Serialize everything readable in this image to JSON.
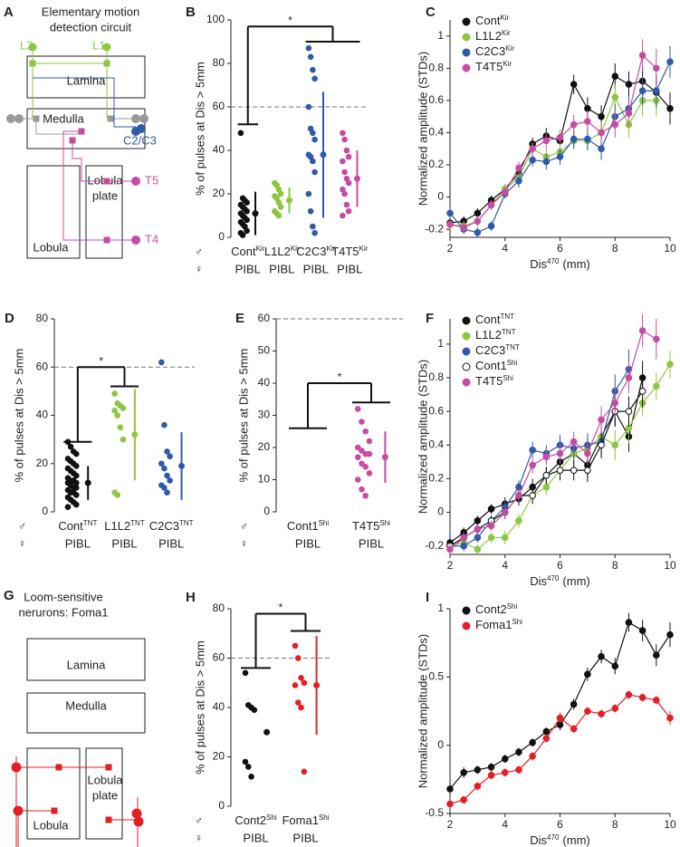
{
  "diagrams": [
    {
      "panel": "A",
      "title_lines": [
        "Elementary motion",
        "detection circuit"
      ],
      "neurons": [
        "L2",
        "L1",
        "C2/C3",
        "T5",
        "T4"
      ],
      "regions": [
        "Lamina",
        "Medulla",
        "Lobula"
      ],
      "plate_lines": [
        "Lobula",
        "plate"
      ]
    },
    {
      "panel": "G",
      "title_lines": [
        "Loom-sensitive",
        "nerurons: Foma1"
      ],
      "regions": [
        "Lamina",
        "Medulla",
        "Lobula"
      ],
      "plate_lines": [
        "Lobula",
        "plate"
      ]
    }
  ],
  "chart_data": [
    {
      "panel": "B",
      "type": "strip",
      "y_label": "% of pulses at Dis > 5mm",
      "male_symbol": "♂",
      "female_symbol": "♀",
      "categories": [
        "Cont",
        "L1L2",
        "C2C3",
        "T4T5"
      ],
      "category_sups": [
        "Kir",
        "Kir",
        "Kir",
        "Kir"
      ],
      "female_labels": [
        "PIBL",
        "PIBL",
        "PIBL",
        "PIBL"
      ],
      "colors": [
        "#111111",
        "#8dc63f",
        "#2f5aa8",
        "#c54ca0"
      ],
      "values": [
        [
          48,
          18,
          17,
          16,
          15,
          14,
          13,
          12,
          11,
          10,
          9,
          8,
          7,
          6,
          5,
          3,
          2,
          1
        ],
        [
          25,
          24,
          22,
          20,
          19,
          18,
          16,
          14,
          12,
          11,
          10
        ],
        [
          87,
          83,
          77,
          73,
          60,
          50,
          48,
          45,
          38,
          37,
          35,
          30,
          20,
          12,
          5,
          2
        ],
        [
          48,
          45,
          40,
          37,
          35,
          30,
          27,
          25,
          22,
          20,
          15,
          12,
          10
        ]
      ],
      "means": [
        11,
        17,
        38,
        27
      ],
      "errors": [
        10,
        6,
        29,
        13
      ],
      "ylim": [
        0,
        100
      ],
      "yticks": [
        0,
        20,
        40,
        60,
        80,
        100
      ],
      "reference_line": 60,
      "significance": {
        "label": "*",
        "legs": [
          {
            "from": 0,
            "to": 0,
            "y": 52
          },
          {
            "from": 2,
            "to": 3,
            "y": 90
          }
        ],
        "top": 97
      }
    },
    {
      "panel": "C",
      "type": "line",
      "y_label": "Normalized amplitude (STDs)",
      "x_label": "Dis",
      "x_label_sup": "470",
      "x_label_unit": "(mm)",
      "x": [
        2,
        2.5,
        3,
        3.5,
        4,
        4.5,
        5,
        5.5,
        6,
        6.5,
        7,
        7.5,
        8,
        8.5,
        9,
        9.5,
        10
      ],
      "xlim": [
        2,
        10
      ],
      "xticks": [
        2,
        4,
        6,
        8,
        10
      ],
      "ylim": [
        -0.25,
        1.1
      ],
      "yticks": [
        -0.2,
        0,
        0.2,
        0.4,
        0.6,
        0.8,
        1
      ],
      "legend": "top-left",
      "series": [
        {
          "name": "Cont",
          "name_sup": "Kir",
          "color": "#111111",
          "values": [
            -0.16,
            -0.15,
            -0.1,
            -0.02,
            0.05,
            0.15,
            0.33,
            0.38,
            0.35,
            0.7,
            0.55,
            0.5,
            0.75,
            0.7,
            0.72,
            0.65,
            0.55
          ],
          "errors": [
            0.03,
            0.03,
            0.03,
            0.03,
            0.03,
            0.04,
            0.04,
            0.05,
            0.05,
            0.06,
            0.07,
            0.07,
            0.08,
            0.08,
            0.09,
            0.1,
            0.1
          ]
        },
        {
          "name": "L1L2",
          "name_sup": "Kir",
          "color": "#8dc63f",
          "values": [
            -0.17,
            -0.18,
            -0.15,
            -0.05,
            0.05,
            0.12,
            0.3,
            0.25,
            0.28,
            0.35,
            0.35,
            0.4,
            0.62,
            0.45,
            0.6,
            0.6,
            null
          ],
          "errors": [
            0.03,
            0.03,
            0.03,
            0.03,
            0.03,
            0.04,
            0.04,
            0.05,
            0.05,
            0.05,
            0.06,
            0.07,
            0.08,
            0.08,
            0.1,
            0.1,
            null
          ]
        },
        {
          "name": "C2C3",
          "name_sup": "Kir",
          "color": "#2f5aa8",
          "values": [
            -0.1,
            -0.2,
            -0.22,
            -0.18,
            0.02,
            0.1,
            0.23,
            0.22,
            0.25,
            0.36,
            0.36,
            0.3,
            0.5,
            0.55,
            0.66,
            0.66,
            0.84
          ],
          "errors": [
            0.03,
            0.03,
            0.03,
            0.03,
            0.03,
            0.04,
            0.04,
            0.05,
            0.05,
            0.06,
            0.07,
            0.07,
            0.08,
            0.08,
            0.09,
            0.1,
            0.1
          ]
        },
        {
          "name": "T4T5",
          "name_sup": "Kir",
          "color": "#c54ca0",
          "values": [
            -0.17,
            -0.19,
            -0.15,
            -0.05,
            0.03,
            0.18,
            0.3,
            0.35,
            0.37,
            0.45,
            0.47,
            0.4,
            0.45,
            0.52,
            0.88,
            0.8,
            null
          ],
          "errors": [
            0.03,
            0.03,
            0.03,
            0.03,
            0.03,
            0.04,
            0.04,
            0.05,
            0.05,
            0.06,
            0.07,
            0.07,
            0.08,
            0.08,
            0.1,
            0.12,
            null
          ]
        }
      ]
    },
    {
      "panel": "D",
      "type": "strip",
      "y_label": "% of pulses at Dis > 5mm",
      "male_symbol": "♂",
      "female_symbol": "♀",
      "categories": [
        "Cont",
        "L1L2",
        "C2C3"
      ],
      "category_sups": [
        "TNT",
        "TNT",
        "TNT"
      ],
      "female_labels": [
        "PIBL",
        "PIBL",
        "PIBL"
      ],
      "colors": [
        "#111111",
        "#8dc63f",
        "#2f5aa8"
      ],
      "values": [
        [
          29,
          27,
          25,
          24,
          22,
          21,
          20,
          19,
          18,
          17,
          16,
          15,
          14,
          13,
          13,
          12,
          12,
          11,
          10,
          10,
          9,
          8,
          8,
          7,
          6,
          5,
          4,
          3,
          2
        ],
        [
          49,
          45,
          44,
          43,
          42,
          40,
          35,
          30,
          8,
          7
        ],
        [
          62,
          36,
          25,
          23,
          20,
          18,
          15,
          13,
          11,
          10,
          8
        ]
      ],
      "means": [
        12,
        32,
        19
      ],
      "errors": [
        7,
        19,
        14
      ],
      "ylim": [
        0,
        80
      ],
      "yticks": [
        0,
        20,
        40,
        60,
        80
      ],
      "reference_line": 60,
      "significance": {
        "label": "*",
        "legs": [
          {
            "from": 0,
            "to": 0,
            "y": 29
          },
          {
            "from": 1,
            "to": 1,
            "y": 52
          }
        ],
        "top": 60
      }
    },
    {
      "panel": "E",
      "type": "strip",
      "y_label": "% of pulses at Dis > 5mm",
      "male_symbol": "♂",
      "female_symbol": "♀",
      "categories": [
        "Cont1",
        "T4T5"
      ],
      "category_sups": [
        "Shi",
        "Shi"
      ],
      "female_labels": [
        "PIBL",
        "PIBL"
      ],
      "colors": [
        "#111111",
        "#c54ca0"
      ],
      "values": [
        [],
        [
          32,
          28,
          25,
          22,
          20,
          19,
          18,
          18,
          17,
          15,
          14,
          12,
          10,
          7,
          5
        ]
      ],
      "means": [
        null,
        17
      ],
      "errors": [
        null,
        8
      ],
      "ylim": [
        0,
        60
      ],
      "yticks": [
        0,
        10,
        20,
        30,
        40,
        50,
        60
      ],
      "reference_line": 60,
      "significance": {
        "label": "*",
        "legs": [
          {
            "from": 0,
            "to": 0,
            "y": 26
          },
          {
            "from": 1,
            "to": 1,
            "y": 34
          }
        ],
        "top": 40
      }
    },
    {
      "panel": "F",
      "type": "line",
      "y_label": "Normalized amplitude (STDs)",
      "x_label": "Dis",
      "x_label_sup": "470",
      "x_label_unit": "(mm)",
      "x": [
        2,
        2.5,
        3,
        3.5,
        4,
        4.5,
        5,
        5.5,
        6,
        6.5,
        7,
        7.5,
        8,
        8.5,
        9,
        9.5,
        10
      ],
      "xlim": [
        2,
        10
      ],
      "xticks": [
        2,
        4,
        6,
        8,
        10
      ],
      "ylim": [
        -0.25,
        1.15
      ],
      "yticks": [
        -0.2,
        0,
        0.2,
        0.4,
        0.6,
        0.8,
        1
      ],
      "legend": "top-left",
      "series": [
        {
          "name": "Cont",
          "name_sup": "TNT",
          "color": "#111111",
          "values": [
            -0.18,
            -0.12,
            -0.05,
            0.02,
            0.05,
            0.08,
            0.15,
            0.22,
            0.3,
            0.35,
            0.28,
            0.45,
            0.6,
            0.45,
            0.8,
            null,
            null
          ],
          "errors": [
            0.03,
            0.03,
            0.03,
            0.03,
            0.04,
            0.04,
            0.05,
            0.05,
            0.06,
            0.06,
            0.07,
            0.08,
            0.09,
            0.09,
            0.1,
            null,
            null
          ]
        },
        {
          "name": "L1L2",
          "name_sup": "TNT",
          "color": "#8dc63f",
          "values": [
            -0.2,
            -0.18,
            -0.22,
            -0.15,
            -0.15,
            -0.05,
            0.1,
            0.15,
            0.25,
            0.35,
            0.38,
            0.45,
            0.4,
            0.5,
            0.65,
            0.75,
            0.88
          ],
          "errors": [
            0.03,
            0.03,
            0.03,
            0.03,
            0.04,
            0.04,
            0.05,
            0.05,
            0.06,
            0.06,
            0.07,
            0.08,
            0.09,
            0.09,
            0.08,
            0.08,
            0.08
          ]
        },
        {
          "name": "C2C3",
          "name_sup": "TNT",
          "color": "#2f5aa8",
          "values": [
            -0.2,
            -0.2,
            -0.15,
            -0.05,
            0.03,
            0.15,
            0.37,
            0.35,
            0.4,
            0.38,
            0.4,
            0.42,
            0.72,
            0.85,
            null,
            null,
            null
          ],
          "errors": [
            0.03,
            0.03,
            0.03,
            0.03,
            0.04,
            0.04,
            0.05,
            0.05,
            0.06,
            0.06,
            0.07,
            0.08,
            0.1,
            0.12,
            null,
            null,
            null
          ]
        },
        {
          "name": "Cont1",
          "name_sup": "Shi",
          "color": "#111111",
          "marker": "open",
          "values": [
            -0.2,
            -0.15,
            -0.1,
            -0.05,
            0.0,
            0.1,
            0.1,
            0.22,
            0.25,
            0.25,
            0.25,
            0.4,
            0.6,
            0.6,
            0.72,
            null,
            null
          ],
          "errors": [
            0.03,
            0.03,
            0.03,
            0.03,
            0.04,
            0.04,
            0.05,
            0.05,
            0.06,
            0.06,
            0.07,
            0.08,
            0.09,
            0.09,
            0.1,
            null,
            null
          ]
        },
        {
          "name": "T4T5",
          "name_sup": "Shi",
          "color": "#c54ca0",
          "values": [
            -0.22,
            -0.15,
            -0.1,
            -0.08,
            0.0,
            0.1,
            0.28,
            0.33,
            0.35,
            0.42,
            0.35,
            0.55,
            0.65,
            0.8,
            1.08,
            1.03,
            null
          ],
          "errors": [
            0.03,
            0.03,
            0.03,
            0.03,
            0.04,
            0.04,
            0.05,
            0.05,
            0.06,
            0.06,
            0.07,
            0.08,
            0.09,
            0.09,
            0.1,
            0.12,
            null
          ]
        }
      ]
    },
    {
      "panel": "H",
      "type": "strip",
      "y_label": "% of pulses at Dis > 5mm",
      "male_symbol": "♂",
      "female_symbol": "♀",
      "categories": [
        "Cont2",
        "Foma1"
      ],
      "category_sups": [
        "Shi",
        "Shi"
      ],
      "female_labels": [
        "PIBL",
        "PIBL"
      ],
      "colors": [
        "#111111",
        "#e41e26"
      ],
      "values": [
        [
          54,
          41,
          40,
          39,
          18,
          16,
          12
        ],
        [
          65,
          60,
          52,
          50,
          49,
          42,
          40,
          14
        ]
      ],
      "means": [
        30,
        49
      ],
      "errors": [
        null,
        20
      ],
      "ylim": [
        0,
        80
      ],
      "yticks": [
        0,
        20,
        40,
        60,
        80
      ],
      "reference_line": 60,
      "significance": {
        "label": "*",
        "legs": [
          {
            "from": 0,
            "to": 0,
            "y": 56
          },
          {
            "from": 1,
            "to": 1,
            "y": 71
          }
        ],
        "top": 78
      }
    },
    {
      "panel": "I",
      "type": "line",
      "y_label": "Normalized amplitude (STDs)",
      "x_label": "Dis",
      "x_label_sup": "470",
      "x_label_unit": "(mm)",
      "x": [
        2,
        2.5,
        3,
        3.5,
        4,
        4.5,
        5,
        5.5,
        6,
        6.5,
        7,
        7.5,
        8,
        8.5,
        9,
        9.5,
        10
      ],
      "xlim": [
        2,
        10
      ],
      "xticks": [
        2,
        4,
        6,
        8,
        10
      ],
      "ylim": [
        -0.5,
        1
      ],
      "yticks": [
        -0.5,
        0,
        0.5,
        1
      ],
      "legend": "top-left",
      "series": [
        {
          "name": "Cont2",
          "name_sup": "Shi",
          "color": "#111111",
          "values": [
            -0.32,
            -0.2,
            -0.18,
            -0.16,
            -0.1,
            -0.05,
            0.02,
            0.1,
            0.15,
            0.3,
            0.52,
            0.65,
            0.58,
            0.9,
            0.84,
            0.66,
            0.81
          ],
          "errors": [
            0.05,
            0.04,
            0.03,
            0.03,
            0.03,
            0.03,
            0.03,
            0.03,
            0.04,
            0.04,
            0.05,
            0.05,
            0.06,
            0.07,
            0.08,
            0.08,
            0.09
          ]
        },
        {
          "name": "Foma1",
          "name_sup": "Shi",
          "color": "#e41e26",
          "values": [
            -0.43,
            -0.4,
            -0.3,
            -0.22,
            -0.2,
            -0.18,
            -0.08,
            0.05,
            0.2,
            0.12,
            0.25,
            0.23,
            0.27,
            0.37,
            0.35,
            0.33,
            0.2
          ],
          "errors": [
            0.03,
            0.03,
            0.03,
            0.03,
            0.03,
            0.03,
            0.03,
            0.03,
            0.04,
            0.03,
            0.03,
            0.03,
            0.03,
            0.03,
            0.03,
            0.03,
            0.05
          ]
        }
      ]
    }
  ]
}
